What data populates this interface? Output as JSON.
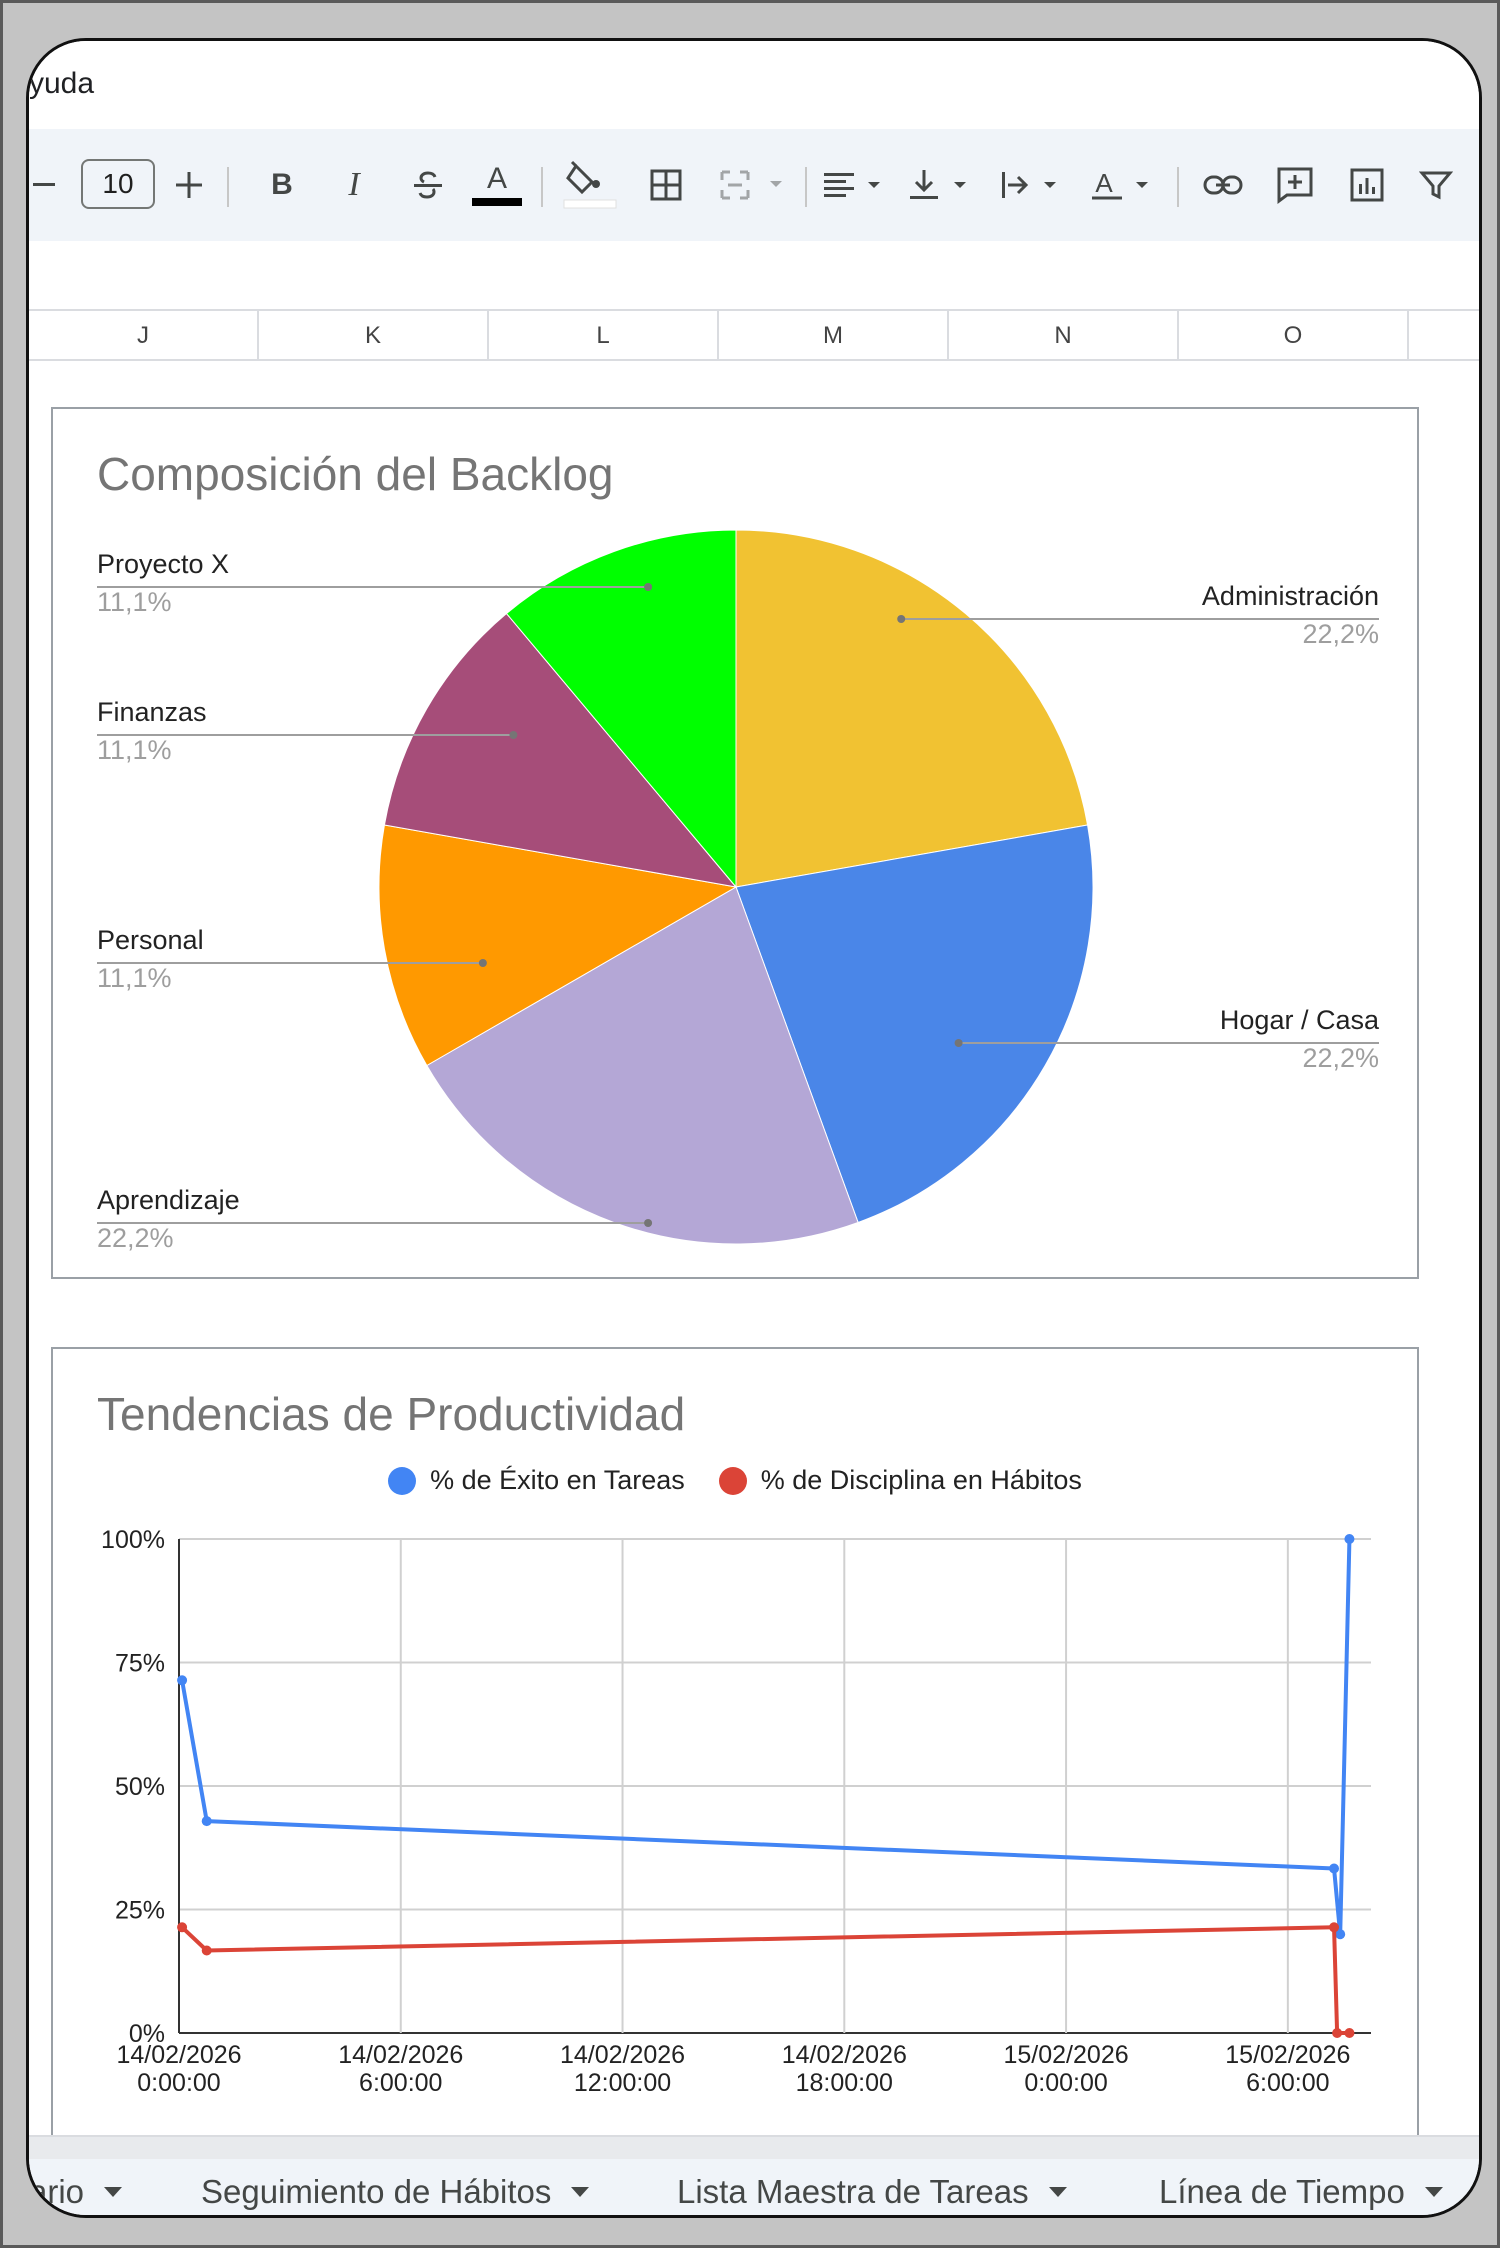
{
  "menu": {
    "visible_text": "yuda"
  },
  "toolbar": {
    "font_size": "10",
    "icons": [
      "minus-icon",
      "plus-icon",
      "bold-icon",
      "italic-icon",
      "strikethrough-icon",
      "text-color-icon",
      "fill-color-icon",
      "borders-icon",
      "merge-cells-icon",
      "align-left-icon",
      "vertical-align-icon",
      "text-wrap-icon",
      "text-rotate-icon",
      "link-icon",
      "comment-icon",
      "insert-chart-icon",
      "filter-icon"
    ],
    "text_color": "#000000",
    "fill_color": "#ffffff",
    "bold_glyph": "B",
    "italic_glyph": "I"
  },
  "columns": [
    "J",
    "K",
    "L",
    "M",
    "N",
    "O"
  ],
  "pie_chart": {
    "chart_data": {
      "type": "pie",
      "title": "Composición del Backlog",
      "slices": [
        {
          "label": "Administración",
          "value": 22.2,
          "display": "22,2%",
          "color": "#f1c232"
        },
        {
          "label": "Hogar / Casa",
          "value": 22.2,
          "display": "22,2%",
          "color": "#4a86e8"
        },
        {
          "label": "Aprendizaje",
          "value": 22.2,
          "display": "22,2%",
          "color": "#b4a7d6"
        },
        {
          "label": "Personal",
          "value": 11.1,
          "display": "11,1%",
          "color": "#ff9900"
        },
        {
          "label": "Finanzas",
          "value": 11.1,
          "display": "11,1%",
          "color": "#a64d79"
        },
        {
          "label": "Proyecto X",
          "value": 11.1,
          "display": "11,1%",
          "color": "#00ff00"
        }
      ],
      "legend": "labeled"
    }
  },
  "line_chart": {
    "chart_data": {
      "type": "line",
      "title": "Tendencias de Productividad",
      "x_ticks": [
        "14/02/2026 0:00:00",
        "14/02/2026 6:00:00",
        "14/02/2026 12:00:00",
        "14/02/2026 18:00:00",
        "15/02/2026 0:00:00",
        "15/02/2026 6:00:00"
      ],
      "y_ticks": [
        "0%",
        "25%",
        "50%",
        "75%",
        "100%"
      ],
      "ylim": [
        0,
        100
      ],
      "xlim": [
        "2026-02-14 00:00",
        "2026-02-15 08:15"
      ],
      "grid": true,
      "legend": "top",
      "series": [
        {
          "name": "% de Éxito en Tareas",
          "color": "#4285f4",
          "points": [
            {
              "x": "2026-02-14 00:05",
              "y": 71.4
            },
            {
              "x": "2026-02-14 00:45",
              "y": 42.9
            },
            {
              "x": "2026-02-15 07:15",
              "y": 33.3
            },
            {
              "x": "2026-02-15 07:25",
              "y": 20
            },
            {
              "x": "2026-02-15 07:40",
              "y": 100
            }
          ]
        },
        {
          "name": "% de Disciplina en Hábitos",
          "color": "#db4437",
          "points": [
            {
              "x": "2026-02-14 00:05",
              "y": 21.4
            },
            {
              "x": "2026-02-14 00:45",
              "y": 16.7
            },
            {
              "x": "2026-02-15 07:15",
              "y": 21.4
            },
            {
              "x": "2026-02-15 07:20",
              "y": 0
            },
            {
              "x": "2026-02-15 07:40",
              "y": 0
            }
          ]
        }
      ]
    }
  },
  "sheet_tabs": [
    "ario",
    "Seguimiento de Hábitos",
    "Lista Maestra de Tareas",
    "Línea de Tiempo"
  ]
}
